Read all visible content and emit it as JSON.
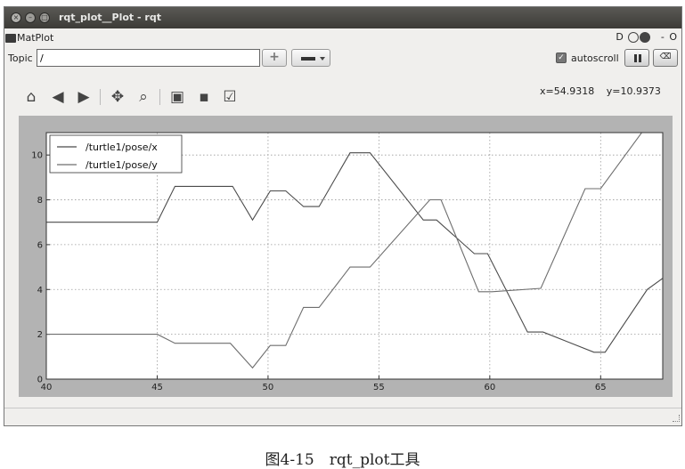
{
  "window": {
    "title": "rqt_plot__Plot - rqt",
    "close_glyph": "×",
    "minimize_glyph": "–",
    "maximize_glyph": "□"
  },
  "plugin": {
    "name": "MatPlot",
    "controls": {
      "detach_label": "D",
      "close_glyph": "- O"
    }
  },
  "topic": {
    "label": "Topic",
    "value": "/",
    "add_glyph": "+",
    "autoscroll_label": "autoscroll",
    "autoscroll_checked": true,
    "clear_glyph": "⌫"
  },
  "toolbar": {
    "buttons": [
      "home-icon",
      "back-icon",
      "forward-icon",
      "pan-icon",
      "zoom-icon",
      "subplots-icon",
      "save-icon",
      "edit-icon"
    ],
    "coords": {
      "x": "x=54.9318",
      "y": "y=10.9373"
    }
  },
  "chart_data": {
    "type": "line",
    "xlim": [
      40,
      67.8
    ],
    "ylim": [
      0,
      11
    ],
    "xticks": [
      40,
      45,
      50,
      55,
      60,
      65
    ],
    "yticks": [
      0,
      2,
      4,
      6,
      8,
      10
    ],
    "grid": true,
    "legend_position": "top-left",
    "series": [
      {
        "name": "/turtle1/pose/x",
        "color": "#4a4a4a",
        "x": [
          40,
          45,
          45.8,
          48.4,
          49.3,
          50.1,
          50.8,
          51.6,
          52.3,
          53.7,
          54.6,
          57,
          57.6,
          59.3,
          59.9,
          61.7,
          62.4,
          64.7,
          65.2,
          67.1,
          67.8
        ],
        "y": [
          7.0,
          7.0,
          8.6,
          8.6,
          7.1,
          8.4,
          8.4,
          7.7,
          7.7,
          10.1,
          10.1,
          7.1,
          7.1,
          5.6,
          5.6,
          2.1,
          2.1,
          1.2,
          1.2,
          4.0,
          4.5
        ]
      },
      {
        "name": "/turtle1/pose/y",
        "color": "#6e6e6e",
        "x": [
          40,
          45,
          45.8,
          48.3,
          49.3,
          50.1,
          50.8,
          51.6,
          52.3,
          53.7,
          54.6,
          57.3,
          57.8,
          59.5,
          60.1,
          62.3,
          64.3,
          65.0,
          67.0
        ],
        "y": [
          2.0,
          2.0,
          1.6,
          1.6,
          0.5,
          1.5,
          1.5,
          3.2,
          3.2,
          5.0,
          5.0,
          8.0,
          8.0,
          3.9,
          3.9,
          4.05,
          8.5,
          8.5,
          11.2
        ]
      }
    ]
  },
  "caption": "图4-15　rqt_plot工具"
}
